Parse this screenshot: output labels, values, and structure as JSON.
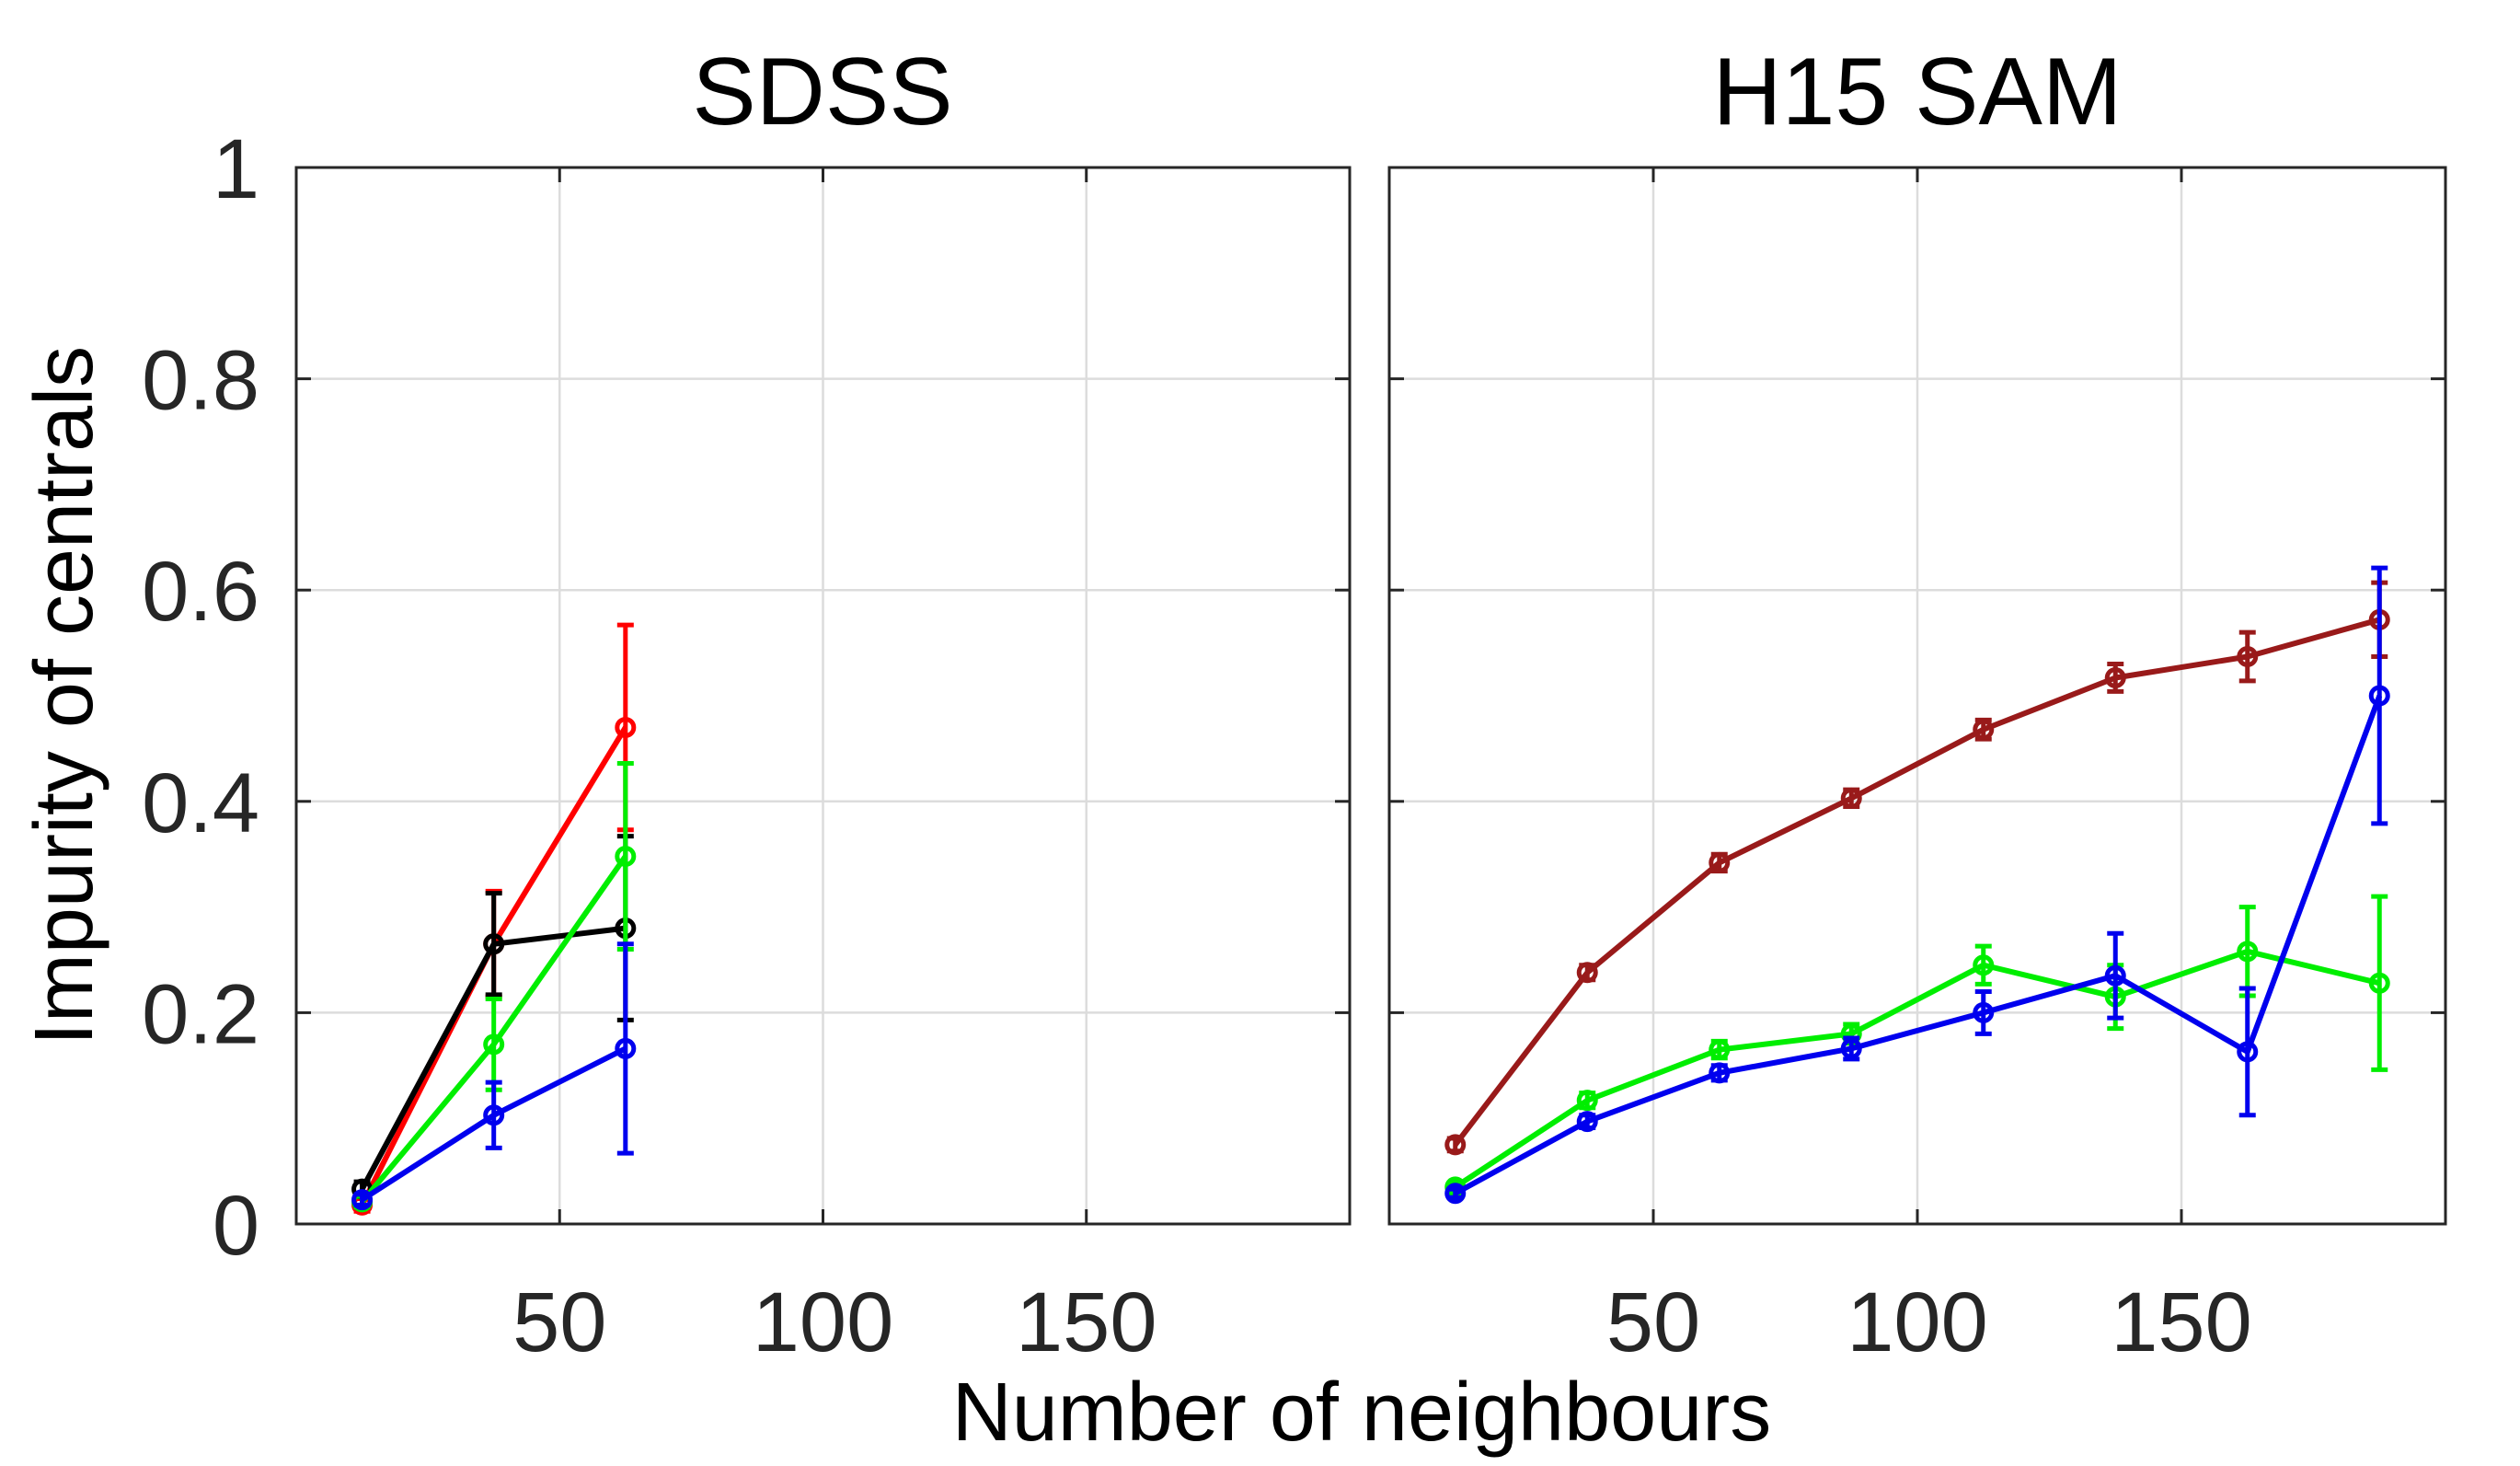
{
  "chart_data": {
    "type": "line",
    "ylabel": "Impurity of centrals",
    "xlabel": "Number of neighbours",
    "ylim": [
      0,
      1
    ],
    "xlim": [
      0,
      200
    ],
    "yticks": [
      "0",
      "0.2",
      "0.4",
      "0.6",
      "0.8",
      "1"
    ],
    "xticks": [
      "50",
      "100",
      "150"
    ],
    "grid": true,
    "panels": [
      {
        "title": "SDSS",
        "series": [
          {
            "name": "red",
            "color": "#ff0000",
            "x": [
              12.5,
              37.5,
              62.5
            ],
            "y": [
              0.018,
              0.265,
              0.47
            ],
            "err": [
              0.006,
              0.05,
              0.097
            ]
          },
          {
            "name": "black",
            "color": "#000000",
            "x": [
              12.5,
              37.5,
              62.5
            ],
            "y": [
              0.033,
              0.265,
              0.28
            ],
            "err": [
              0.007,
              0.048,
              0.087
            ]
          },
          {
            "name": "green",
            "color": "#00ee00",
            "x": [
              12.5,
              37.5,
              62.5
            ],
            "y": [
              0.021,
              0.17,
              0.348
            ],
            "err": [
              0.005,
              0.043,
              0.088
            ]
          },
          {
            "name": "blue",
            "color": "#0000ee",
            "x": [
              12.5,
              37.5,
              62.5
            ],
            "y": [
              0.023,
              0.103,
              0.166
            ],
            "err": [
              0.005,
              0.031,
              0.099
            ]
          }
        ]
      },
      {
        "title": "H15 SAM",
        "series": [
          {
            "name": "darkred",
            "color": "#991a1a",
            "x": [
              12.5,
              37.5,
              62.5,
              87.5,
              112.5,
              137.5,
              162.5,
              187.5
            ],
            "y": [
              0.075,
              0.238,
              0.342,
              0.403,
              0.468,
              0.517,
              0.537,
              0.572
            ],
            "err": [
              0.006,
              0.007,
              0.008,
              0.008,
              0.009,
              0.013,
              0.023,
              0.035
            ]
          },
          {
            "name": "green",
            "color": "#00ee00",
            "x": [
              12.5,
              37.5,
              62.5,
              87.5,
              112.5,
              137.5,
              162.5,
              187.5
            ],
            "y": [
              0.035,
              0.117,
              0.165,
              0.18,
              0.245,
              0.215,
              0.258,
              0.228
            ],
            "err": [
              0.004,
              0.007,
              0.008,
              0.009,
              0.018,
              0.03,
              0.042,
              0.082
            ]
          },
          {
            "name": "blue",
            "color": "#0000ee",
            "x": [
              12.5,
              37.5,
              62.5,
              87.5,
              112.5,
              137.5,
              162.5,
              187.5
            ],
            "y": [
              0.029,
              0.097,
              0.143,
              0.166,
              0.2,
              0.235,
              0.163,
              0.5
            ],
            "err": [
              0.004,
              0.006,
              0.007,
              0.01,
              0.02,
              0.04,
              0.06,
              0.121
            ]
          }
        ]
      }
    ]
  }
}
